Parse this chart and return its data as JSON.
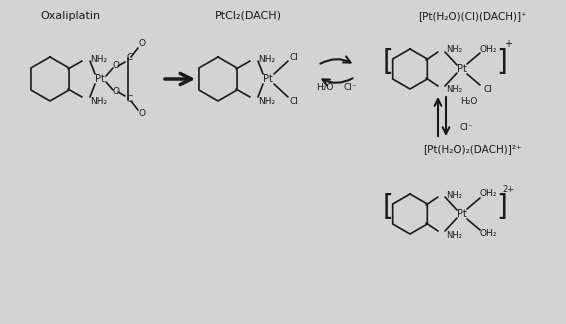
{
  "background_color": "#d3d3d3",
  "figure_width": 5.66,
  "figure_height": 3.24,
  "dpi": 100,
  "text_color": "#1a1a1a",
  "line_color": "#1a1a1a",
  "title_oxaliplatin": "Oxaliplatin",
  "title_ptcl2": "PtCl₂(DACH)",
  "label_top_right": "[Pt(H₂O)(Cl)(DACH)]⁺",
  "label_bottom_right": "[Pt(H₂O)₂(DACH)]²⁺",
  "h2o_label": "H₂O",
  "cl_minus_label": "Cl⁻",
  "charge_plus": "⁺",
  "charge_2plus": "²⁺"
}
